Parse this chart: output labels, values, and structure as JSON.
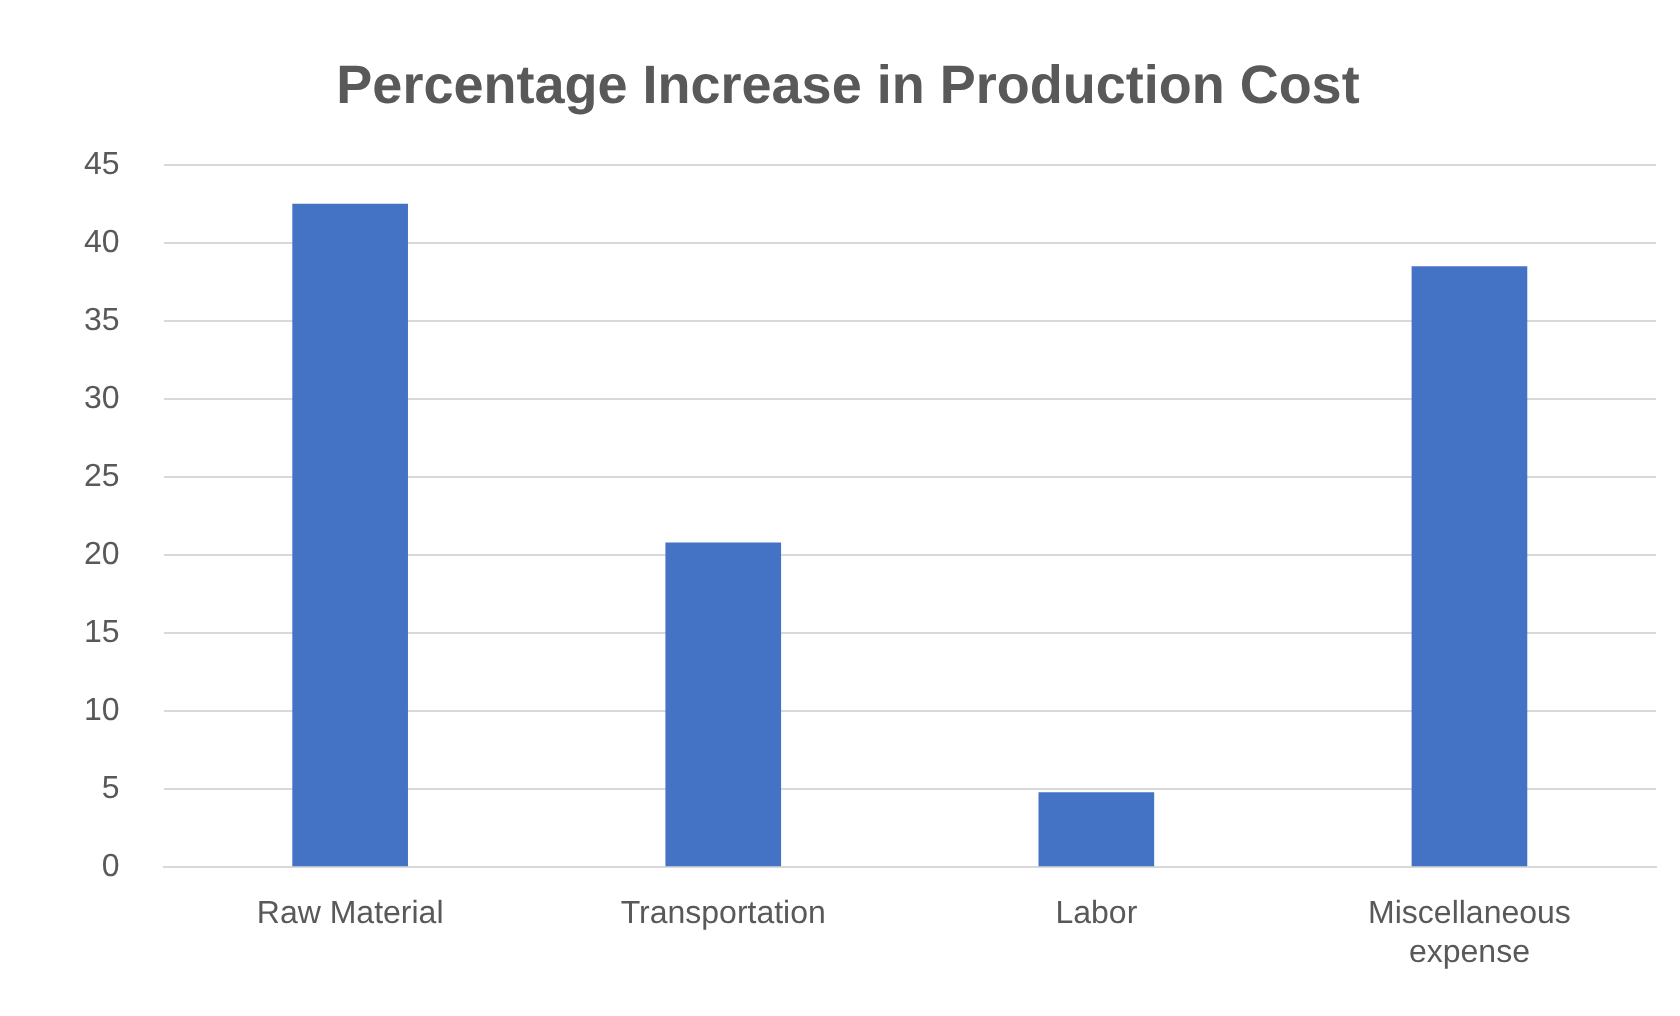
{
  "chart_data": {
    "type": "bar",
    "title": "Percentage Increase in Production Cost",
    "categories": [
      "Raw Material",
      "Transportation",
      "Labor",
      "Miscellaneous expense"
    ],
    "values": [
      42.5,
      20.8,
      4.8,
      38.5
    ],
    "color": "#4472c4",
    "ylim": [
      0,
      45
    ],
    "yticks": [
      0,
      5,
      10,
      15,
      20,
      25,
      30,
      35,
      40,
      45
    ],
    "grid": "y",
    "legend": false
  }
}
